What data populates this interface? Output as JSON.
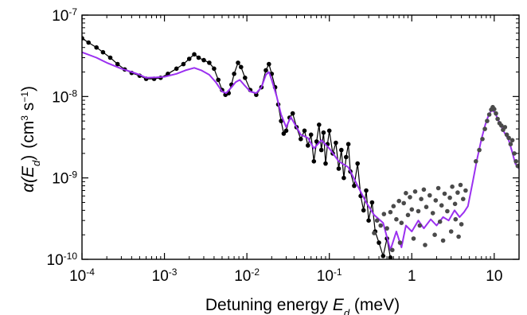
{
  "chart_data": {
    "type": "line",
    "xscale": "log",
    "yscale": "log",
    "xlim": [
      0.0001,
      20
    ],
    "ylim": [
      1e-10,
      1e-07
    ],
    "grid": false,
    "legend": "none",
    "xlabel": {
      "text": "Detuning energy ",
      "var": "E",
      "sub": "d",
      "unit": " (meV)"
    },
    "ylabel": {
      "func": "α(",
      "var": "E",
      "sub": "d",
      "close": ")",
      "unit_pre": "(cm",
      "unit_exp1": "3",
      "unit_mid": " s",
      "unit_exp2": "−1",
      "unit_post": ")"
    },
    "x_ticks": [
      {
        "value": 0.0001,
        "base": "10",
        "exp": "-4"
      },
      {
        "value": 0.001,
        "base": "10",
        "exp": "-3"
      },
      {
        "value": 0.01,
        "base": "10",
        "exp": "-2"
      },
      {
        "value": 0.1,
        "base": "10",
        "exp": "-1"
      },
      {
        "value": 1,
        "base": "1",
        "exp": ""
      },
      {
        "value": 10,
        "base": "10",
        "exp": ""
      }
    ],
    "y_ticks": [
      {
        "value": 1e-10,
        "base": "10",
        "exp": "-10"
      },
      {
        "value": 1e-09,
        "base": "10",
        "exp": "-9"
      },
      {
        "value": 1e-08,
        "base": "10",
        "exp": "-8"
      },
      {
        "value": 1e-07,
        "base": "10",
        "exp": "-7"
      }
    ],
    "series": [
      {
        "color": "#000000",
        "style": "line+markers",
        "points": [
          [
            0.0001,
            5.2e-08
          ],
          [
            0.00012,
            4.6e-08
          ],
          [
            0.00015,
            4e-08
          ],
          [
            0.00018,
            3.5e-08
          ],
          [
            0.00022,
            3e-08
          ],
          [
            0.00027,
            2.5e-08
          ],
          [
            0.00033,
            2.15e-08
          ],
          [
            0.0004,
            1.95e-08
          ],
          [
            0.0005,
            1.8e-08
          ],
          [
            0.0006,
            1.65e-08
          ],
          [
            0.00075,
            1.65e-08
          ],
          [
            0.0009,
            1.7e-08
          ],
          [
            0.0011,
            1.9e-08
          ],
          [
            0.0014,
            2.2e-08
          ],
          [
            0.0017,
            2.5e-08
          ],
          [
            0.002,
            2.9e-08
          ],
          [
            0.0023,
            3.3e-08
          ],
          [
            0.0026,
            3e-08
          ],
          [
            0.003,
            2.8e-08
          ],
          [
            0.0035,
            2.6e-08
          ],
          [
            0.004,
            2.2e-08
          ],
          [
            0.0045,
            1.6e-08
          ],
          [
            0.005,
            1.2e-08
          ],
          [
            0.0055,
            1.05e-08
          ],
          [
            0.006,
            1.1e-08
          ],
          [
            0.0065,
            1.4e-08
          ],
          [
            0.007,
            1.9e-08
          ],
          [
            0.0078,
            2.6e-08
          ],
          [
            0.0085,
            2.3e-08
          ],
          [
            0.0095,
            1.7e-08
          ],
          [
            0.011,
            1.2e-08
          ],
          [
            0.013,
            1.05e-08
          ],
          [
            0.015,
            1.3e-08
          ],
          [
            0.017,
            2.1e-08
          ],
          [
            0.0185,
            2.5e-08
          ],
          [
            0.02,
            1.9e-08
          ],
          [
            0.022,
            1.3e-08
          ],
          [
            0.024,
            8e-09
          ],
          [
            0.026,
            5e-09
          ],
          [
            0.028,
            3.5e-09
          ],
          [
            0.03,
            3.8e-09
          ],
          [
            0.033,
            5.5e-09
          ],
          [
            0.036,
            6.2e-09
          ],
          [
            0.04,
            4.2e-09
          ],
          [
            0.045,
            3e-09
          ],
          [
            0.05,
            3.8e-09
          ],
          [
            0.055,
            2.5e-09
          ],
          [
            0.06,
            3.4e-09
          ],
          [
            0.065,
            1.6e-09
          ],
          [
            0.07,
            2.8e-09
          ],
          [
            0.075,
            4.5e-09
          ],
          [
            0.08,
            2.2e-09
          ],
          [
            0.085,
            3.6e-09
          ],
          [
            0.09,
            1.5e-09
          ],
          [
            0.095,
            2.6e-09
          ],
          [
            0.1,
            3.8e-09
          ],
          [
            0.11,
            2e-09
          ],
          [
            0.12,
            2.7e-09
          ],
          [
            0.13,
            1.3e-09
          ],
          [
            0.14,
            2.2e-09
          ],
          [
            0.15,
            1e-09
          ],
          [
            0.16,
            1.8e-09
          ],
          [
            0.17,
            2.6e-09
          ],
          [
            0.18,
            1.2e-09
          ],
          [
            0.2,
            8e-10
          ],
          [
            0.22,
            1.5e-09
          ],
          [
            0.24,
            6e-10
          ],
          [
            0.26,
            4e-10
          ],
          [
            0.28,
            7e-10
          ],
          [
            0.3,
            3e-10
          ],
          [
            0.33,
            5e-10
          ],
          [
            0.36,
            2.2e-10
          ],
          [
            0.4,
            1.6e-10
          ],
          [
            0.45,
            1.1e-10
          ],
          [
            0.5,
            1.8e-10
          ],
          [
            0.55,
            1.05e-10
          ]
        ]
      },
      {
        "color": "#9b30f0",
        "style": "line",
        "points": [
          [
            0.0001,
            3.5e-08
          ],
          [
            0.00015,
            3e-08
          ],
          [
            0.0002,
            2.6e-08
          ],
          [
            0.0003,
            2.2e-08
          ],
          [
            0.0004,
            2e-08
          ],
          [
            0.0005,
            1.85e-08
          ],
          [
            0.0006,
            1.7e-08
          ],
          [
            0.0008,
            1.72e-08
          ],
          [
            0.001,
            1.75e-08
          ],
          [
            0.0014,
            1.9e-08
          ],
          [
            0.0018,
            2.1e-08
          ],
          [
            0.0023,
            2.25e-08
          ],
          [
            0.0028,
            2.1e-08
          ],
          [
            0.0035,
            1.85e-08
          ],
          [
            0.0042,
            1.5e-08
          ],
          [
            0.005,
            1.15e-08
          ],
          [
            0.0056,
            1.1e-08
          ],
          [
            0.0065,
            1.3e-08
          ],
          [
            0.0073,
            1.5e-08
          ],
          [
            0.0082,
            1.6e-08
          ],
          [
            0.0092,
            1.4e-08
          ],
          [
            0.011,
            1.15e-08
          ],
          [
            0.013,
            1.1e-08
          ],
          [
            0.015,
            1.3e-08
          ],
          [
            0.017,
            1.85e-08
          ],
          [
            0.0185,
            2e-08
          ],
          [
            0.02,
            1.6e-08
          ],
          [
            0.023,
            1e-08
          ],
          [
            0.026,
            6e-09
          ],
          [
            0.03,
            4.2e-09
          ],
          [
            0.034,
            5.6e-09
          ],
          [
            0.038,
            4.6e-09
          ],
          [
            0.045,
            3.4e-09
          ],
          [
            0.055,
            3.1e-09
          ],
          [
            0.065,
            2.3e-09
          ],
          [
            0.08,
            2.9e-09
          ],
          [
            0.1,
            2.3e-09
          ],
          [
            0.13,
            1.6e-09
          ],
          [
            0.17,
            1.35e-09
          ],
          [
            0.22,
            8e-10
          ],
          [
            0.28,
            5e-10
          ],
          [
            0.35,
            3.5e-10
          ],
          [
            0.45,
            2.8e-10
          ],
          [
            0.55,
            1.3e-10
          ],
          [
            0.65,
            2.2e-10
          ],
          [
            0.75,
            1.4e-10
          ],
          [
            0.85,
            2.6e-10
          ],
          [
            1.0,
            2.2e-10
          ],
          [
            1.2,
            3e-10
          ],
          [
            1.4,
            2.4e-10
          ],
          [
            1.7,
            3.1e-10
          ],
          [
            2.0,
            2.6e-10
          ],
          [
            2.4,
            3.3e-10
          ],
          [
            2.8,
            3e-10
          ],
          [
            3.3,
            4e-10
          ],
          [
            3.8,
            3.3e-10
          ],
          [
            4.3,
            3.8e-10
          ],
          [
            4.8,
            4.5e-10
          ],
          [
            5.5,
            9e-10
          ],
          [
            6.2,
            1.7e-09
          ],
          [
            7.0,
            3e-09
          ],
          [
            7.8,
            4.5e-09
          ],
          [
            8.6,
            6e-09
          ],
          [
            9.3,
            6.8e-09
          ],
          [
            10.0,
            6.5e-09
          ],
          [
            11.0,
            5.4e-09
          ],
          [
            12.0,
            4.4e-09
          ],
          [
            13.5,
            3.5e-09
          ],
          [
            15.0,
            2.9e-09
          ],
          [
            16.5,
            2.1e-09
          ],
          [
            18.0,
            1.5e-09
          ],
          [
            20.0,
            1.3e-09
          ]
        ]
      },
      {
        "color": "#4a4a4a",
        "style": "markers",
        "points": [
          [
            0.35,
            2.1e-10
          ],
          [
            0.38,
            3e-10
          ],
          [
            0.42,
            2.6e-10
          ],
          [
            0.46,
            3.6e-10
          ],
          [
            0.5,
            2.4e-10
          ],
          [
            0.55,
            3.8e-10
          ],
          [
            0.6,
            4.5e-10
          ],
          [
            0.65,
            3.1e-10
          ],
          [
            0.7,
            5.2e-10
          ],
          [
            0.75,
            2.8e-10
          ],
          [
            0.8,
            4.9e-10
          ],
          [
            0.85,
            6.5e-10
          ],
          [
            0.9,
            3.5e-10
          ],
          [
            0.95,
            5.8e-10
          ],
          [
            1.0,
            4.1e-10
          ],
          [
            1.1,
            6.8e-10
          ],
          [
            1.2,
            3.9e-10
          ],
          [
            1.3,
            5.5e-10
          ],
          [
            1.4,
            7.2e-10
          ],
          [
            1.5,
            4.4e-10
          ],
          [
            1.65,
            6.1e-10
          ],
          [
            1.8,
            3.7e-10
          ],
          [
            1.95,
            5.3e-10
          ],
          [
            2.1,
            7.5e-10
          ],
          [
            2.3,
            4.6e-10
          ],
          [
            2.5,
            6.4e-10
          ],
          [
            2.7,
            3.9e-10
          ],
          [
            2.9,
            5.7e-10
          ],
          [
            3.1,
            7.8e-10
          ],
          [
            3.35,
            4.8e-10
          ],
          [
            3.6,
            6.6e-10
          ],
          [
            3.9,
            8.2e-10
          ],
          [
            4.2,
            5.5e-10
          ],
          [
            4.5,
            7e-10
          ],
          [
            0.72,
            1.6e-10
          ],
          [
            1.05,
            1.8e-10
          ],
          [
            1.45,
            1.5e-10
          ],
          [
            1.9,
            2e-10
          ],
          [
            2.4,
            1.7e-10
          ],
          [
            3.0,
            2.2e-10
          ],
          [
            3.7,
            1.9e-10
          ],
          [
            0.58,
            1.3e-10
          ],
          [
            1.25,
            2.6e-10
          ],
          [
            2.2,
            2.9e-10
          ],
          [
            3.4,
            3.1e-10
          ],
          [
            4.0,
            2.7e-10
          ],
          [
            6.0,
            1.6e-09
          ],
          [
            6.6,
            2.2e-09
          ],
          [
            7.2,
            3e-09
          ],
          [
            7.7,
            4e-09
          ],
          [
            8.2,
            5e-09
          ],
          [
            8.7,
            6e-09
          ],
          [
            9.2,
            6.9e-09
          ],
          [
            9.6,
            7.4e-09
          ],
          [
            10.0,
            7e-09
          ],
          [
            10.5,
            6.2e-09
          ],
          [
            11.0,
            5.3e-09
          ],
          [
            11.6,
            4.7e-09
          ],
          [
            12.2,
            4.4e-09
          ],
          [
            12.8,
            3.9e-09
          ],
          [
            13.5,
            4.2e-09
          ],
          [
            14.2,
            3.4e-09
          ],
          [
            15.0,
            3.1e-09
          ],
          [
            15.8,
            2.6e-09
          ],
          [
            16.6,
            2.9e-09
          ],
          [
            17.5,
            2e-09
          ],
          [
            18.4,
            1.6e-09
          ],
          [
            19.3,
            1.4e-09
          ]
        ]
      }
    ]
  }
}
